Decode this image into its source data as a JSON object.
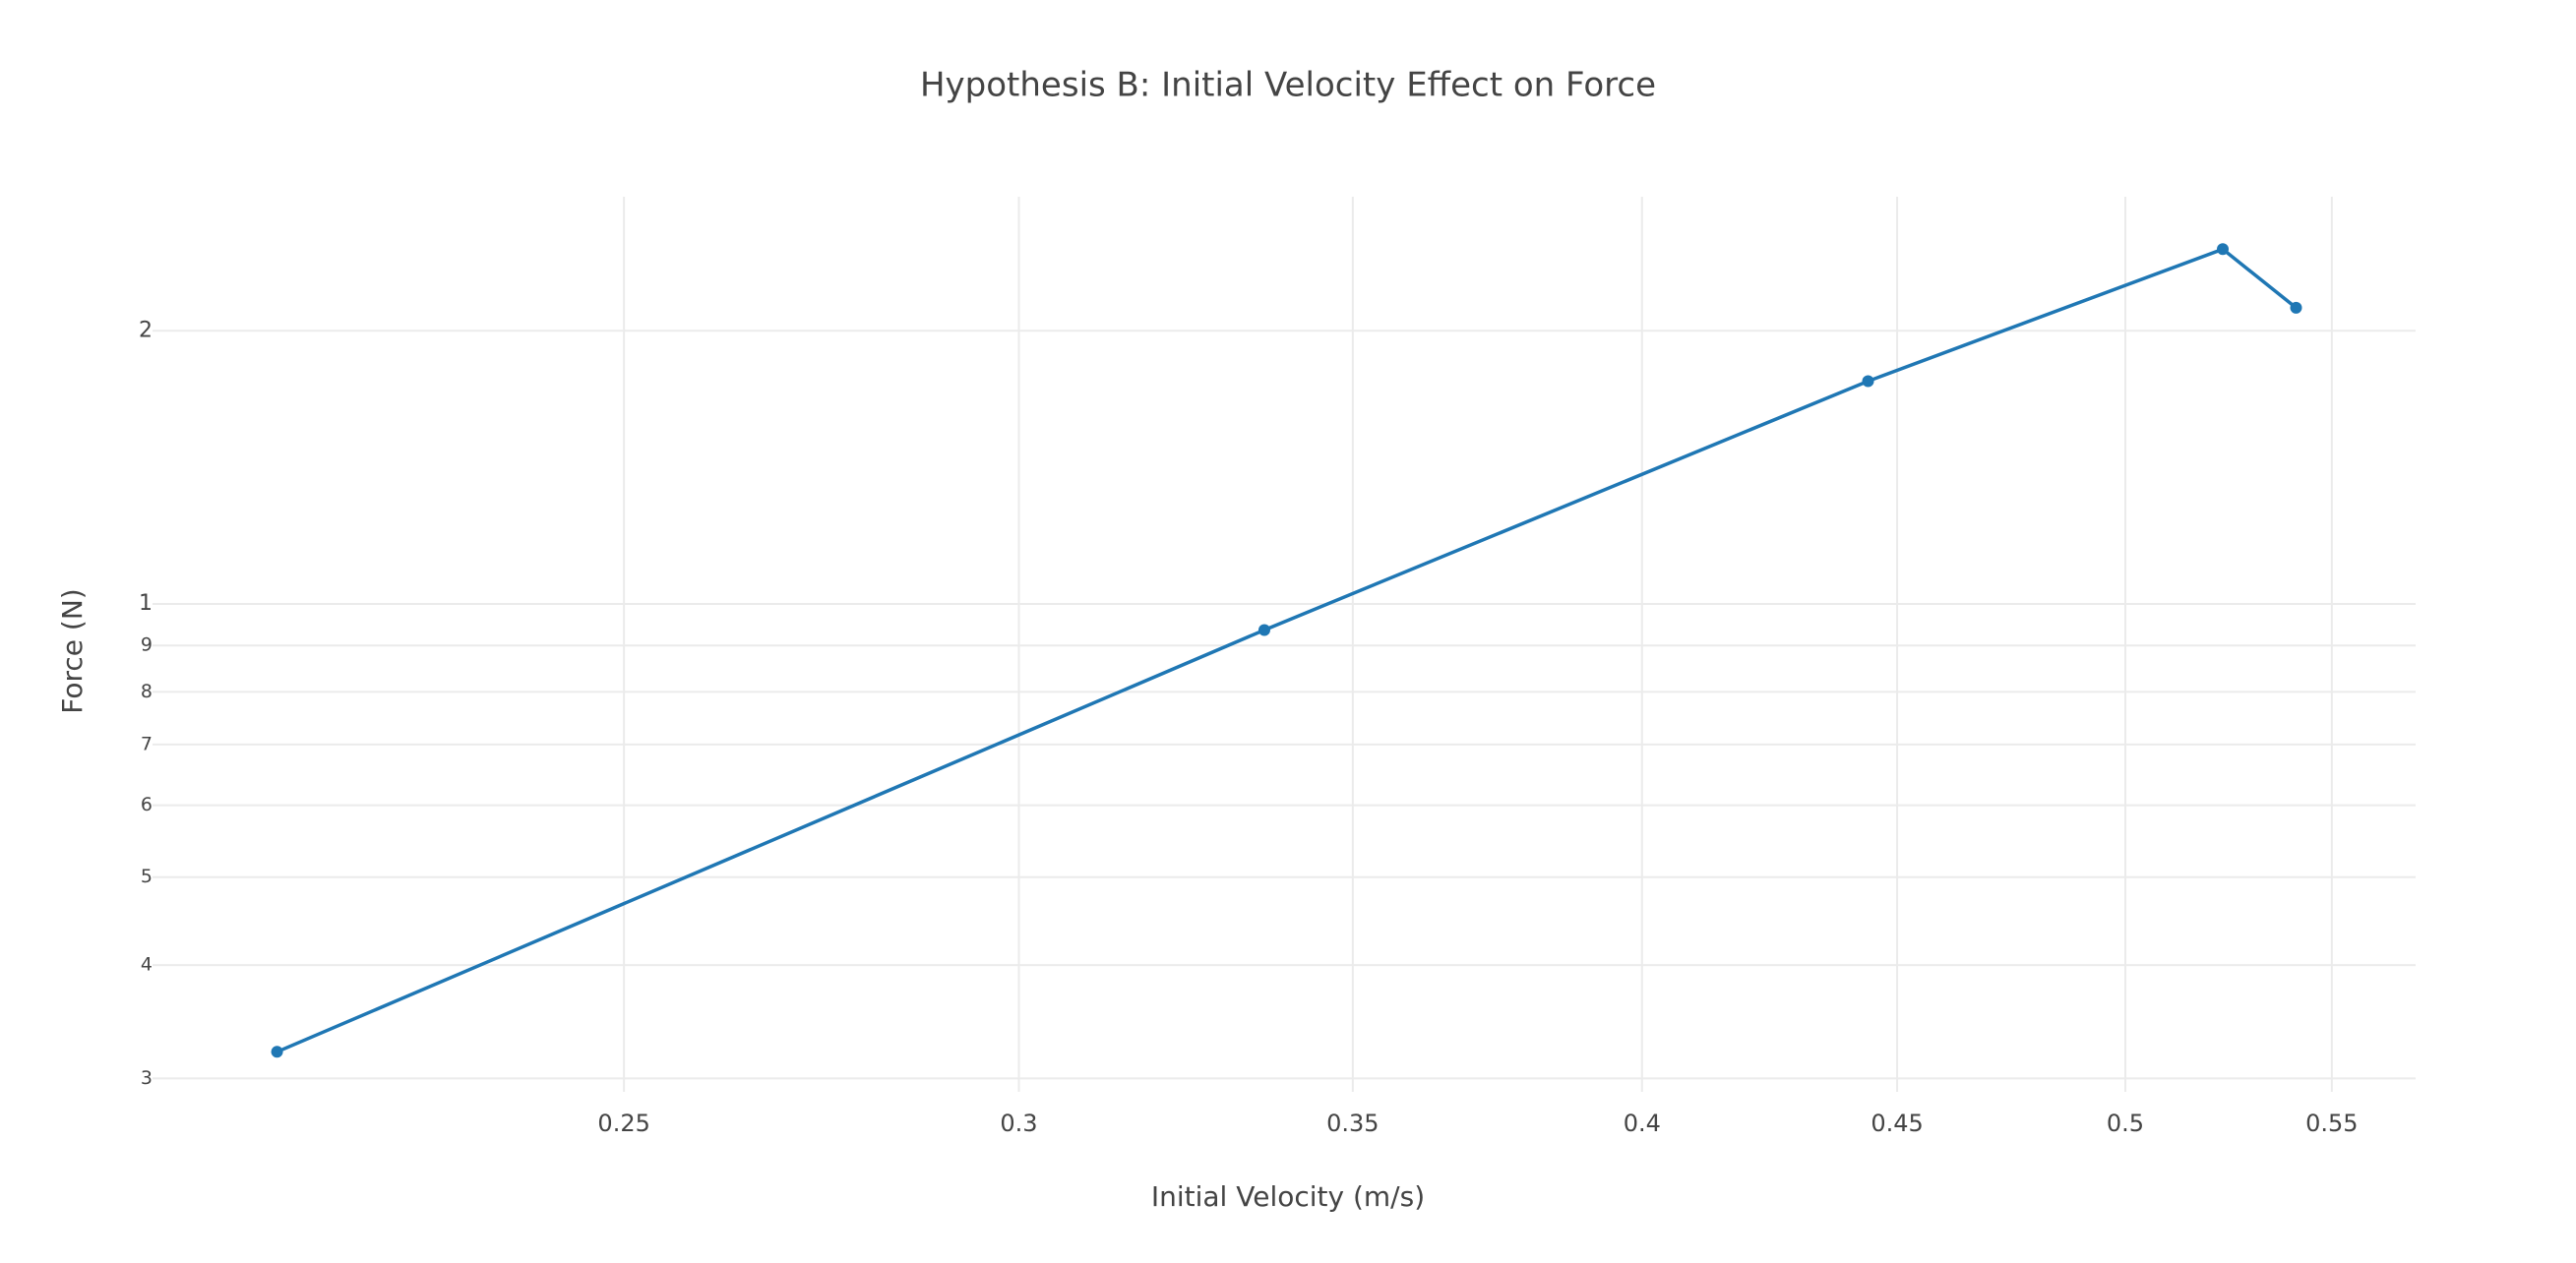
{
  "chart_data": {
    "type": "line",
    "title": "Hypothesis B: Initial Velocity Effect on Force",
    "x_label": "Initial Velocity (m/s)",
    "y_label": "Force (N)",
    "x": [
      0.213,
      0.336,
      0.444,
      0.523,
      0.541
    ],
    "series": [
      {
        "name": "Force",
        "color": "#1f77b4",
        "values": [
          0.321,
          0.936,
          1.76,
          2.46,
          2.12
        ]
      }
    ],
    "x_log": true,
    "y_log": true,
    "grid": true,
    "legend": false,
    "xlim": [
      0.2011,
      0.5717
    ],
    "ylim": [
      0.29,
      2.81
    ],
    "xticks": [
      0.25,
      0.3,
      0.35,
      0.4,
      0.45,
      0.5,
      0.55
    ],
    "yticks": [
      {
        "value": 0.3,
        "label": "3"
      },
      {
        "value": 0.4,
        "label": "4"
      },
      {
        "value": 0.5,
        "label": "5"
      },
      {
        "value": 0.6,
        "label": "6"
      },
      {
        "value": 0.7,
        "label": "7"
      },
      {
        "value": 0.8,
        "label": "8"
      },
      {
        "value": 0.9,
        "label": "9"
      },
      1,
      2
    ]
  }
}
